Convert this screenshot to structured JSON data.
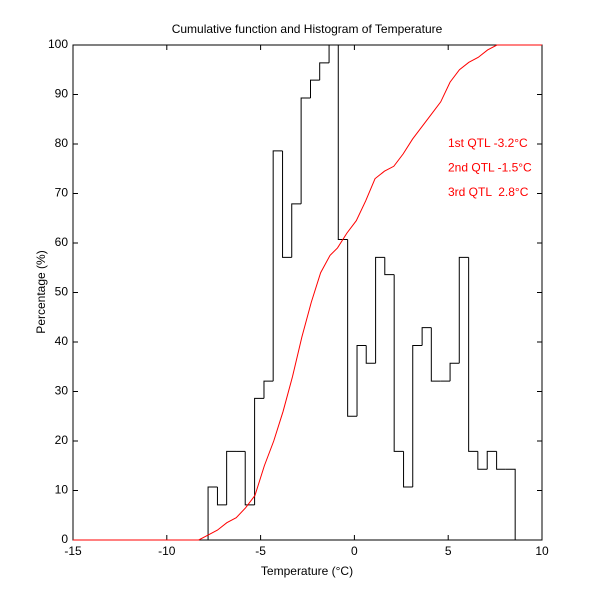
{
  "chart_data": {
    "type": "histogram",
    "title": "Cumulative function and Histogram of Temperature",
    "xlabel": "Temperature (°C)",
    "ylabel": "Percentage (%)",
    "xlim": [
      -15,
      10
    ],
    "ylim": [
      0,
      100
    ],
    "xticks": [
      -15,
      -10,
      -5,
      0,
      5,
      10
    ],
    "yticks": [
      0,
      10,
      20,
      30,
      40,
      50,
      60,
      70,
      80,
      90,
      100
    ],
    "color": "#000000",
    "bins": [
      -7.8,
      -7.3,
      -6.81,
      -6.31,
      -5.82,
      -5.32,
      -4.82,
      -4.33,
      -3.83,
      -3.34,
      -2.84,
      -2.34,
      -1.85,
      -1.35,
      -0.86,
      -0.36,
      0.14,
      0.63,
      1.13,
      1.62,
      2.12,
      2.62,
      3.11,
      3.61,
      4.1,
      4.6,
      5.1,
      5.59,
      6.09,
      6.58,
      7.08,
      7.58,
      8.07,
      8.57
    ],
    "counts": [
      10.7,
      7.1,
      17.9,
      17.9,
      7.1,
      28.6,
      32.1,
      78.6,
      57.1,
      67.9,
      89.3,
      92.9,
      96.4,
      100,
      60.7,
      25,
      39.3,
      35.7,
      57.1,
      53.6,
      17.9,
      10.7,
      39.3,
      42.9,
      32.1,
      32.1,
      35.7,
      57.1,
      17.9,
      14.3,
      17.9,
      14.3,
      14.3
    ],
    "line": {
      "color": "#ff0000",
      "x": [
        -15,
        -8.3,
        -7.8,
        -7.3,
        -6.8,
        -6.3,
        -5.8,
        -5.3,
        -4.8,
        -4.3,
        -3.8,
        -3.3,
        -2.8,
        -2.3,
        -1.8,
        -1.3,
        -0.9,
        -0.4,
        0.1,
        0.6,
        1.1,
        1.6,
        2.1,
        2.6,
        3.1,
        3.6,
        4.1,
        4.6,
        5.1,
        5.6,
        6.1,
        6.6,
        7.1,
        7.6,
        10
      ],
      "values": [
        0,
        0,
        1,
        2,
        3.5,
        4.5,
        6.5,
        9,
        15,
        20,
        26,
        33,
        41,
        48,
        54,
        57.5,
        59,
        62,
        64.5,
        68.5,
        73,
        74.5,
        75.5,
        78,
        81,
        83.5,
        86,
        88.5,
        92.5,
        95,
        96.5,
        97.5,
        99,
        100,
        100
      ]
    },
    "annotations": [
      "1st QTL -3.2°C",
      "2nd QTL -1.5°C",
      "3rd QTL  2.8°C"
    ],
    "annotation_color": "#ff0000"
  }
}
